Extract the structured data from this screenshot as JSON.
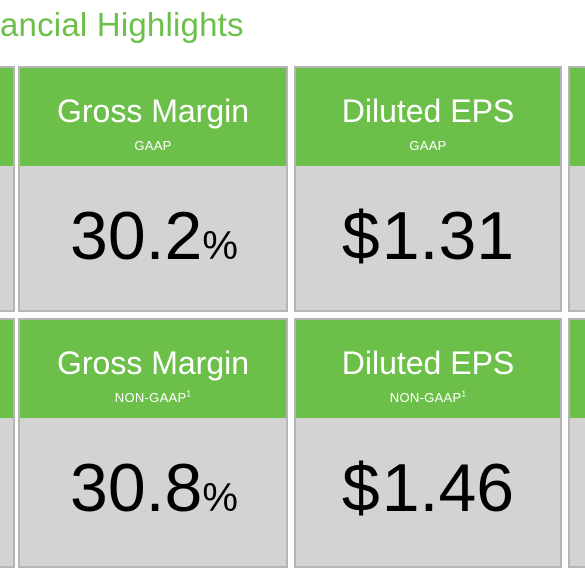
{
  "title": "ancial Highlights",
  "colors": {
    "accent_green": "#6cc04a",
    "panel_gray": "#d3d3d3",
    "border_gray": "#b5b5b5"
  },
  "cards": [
    {
      "label": "Gross Margin",
      "sublabel": "GAAP",
      "footnote": "",
      "value": "30.2",
      "prefix": "",
      "suffix": "%"
    },
    {
      "label": "Diluted EPS",
      "sublabel": "GAAP",
      "footnote": "",
      "value": "1.31",
      "prefix": "$",
      "suffix": ""
    },
    {
      "label": "Gross Margin",
      "sublabel": "NON-GAAP",
      "footnote": "1",
      "value": "30.8",
      "prefix": "",
      "suffix": "%"
    },
    {
      "label": "Diluted EPS",
      "sublabel": "NON-GAAP",
      "footnote": "1",
      "value": "1.46",
      "prefix": "$",
      "suffix": ""
    }
  ]
}
